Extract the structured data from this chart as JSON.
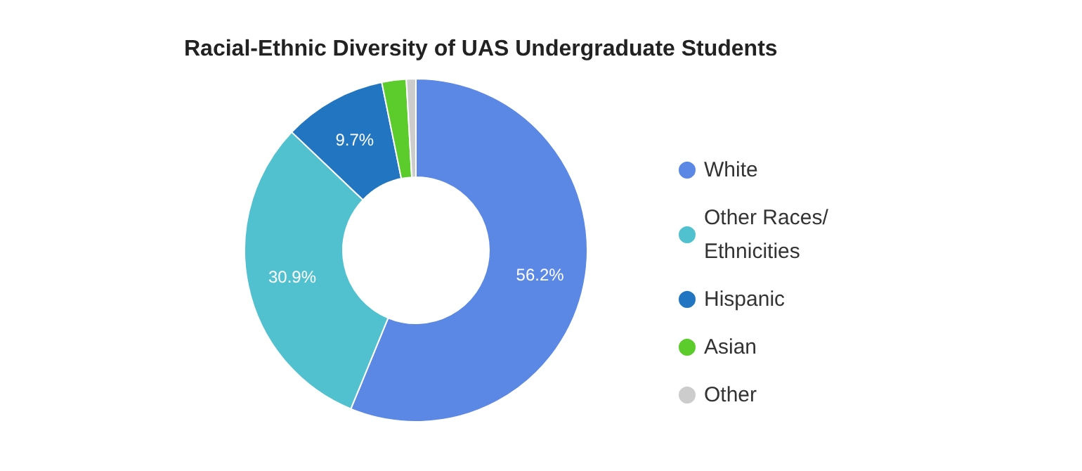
{
  "chart_data": {
    "type": "donut",
    "title": "Racial-Ethnic Diversity of UAS Undergraduate Students",
    "categories": [
      "White",
      "Other Races/ Ethnicities",
      "Hispanic",
      "Asian",
      "Other"
    ],
    "values": [
      56.2,
      30.9,
      9.7,
      2.3,
      0.9
    ],
    "colors": [
      "#5b87e5",
      "#52c1cf",
      "#2275c0",
      "#5ccb2c",
      "#cccccc"
    ],
    "value_labels": [
      "56.2%",
      "30.9%",
      "9.7%",
      null,
      null
    ],
    "legend": "right"
  }
}
